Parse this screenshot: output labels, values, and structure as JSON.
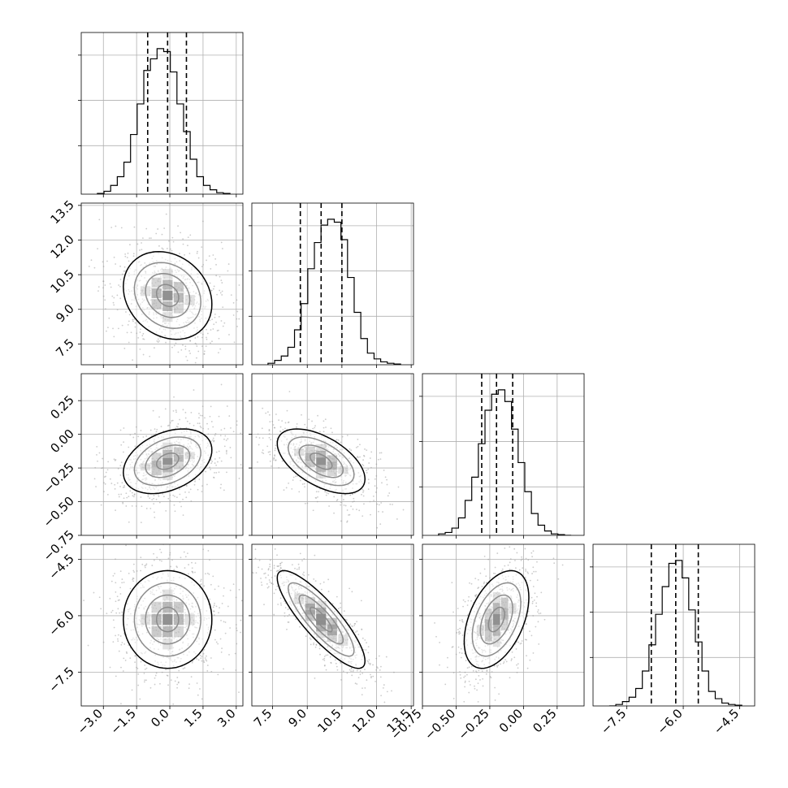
{
  "chart_data": {
    "type": "corner",
    "grid": true,
    "params": [
      {
        "ticks": [
          -3.0,
          -1.5,
          0.0,
          1.5,
          3.0
        ],
        "tick_labels": [
          "−3.0",
          "−1.5",
          "0.0",
          "1.5",
          "3.0"
        ],
        "range": [
          -4.0,
          3.3
        ],
        "quantiles": [
          -1.0,
          -0.1,
          0.75
        ]
      },
      {
        "ticks": [
          7.5,
          9.0,
          10.5,
          12.0,
          13.5
        ],
        "tick_labels": [
          "7.5",
          "9.0",
          "10.5",
          "12.0",
          "13.5"
        ],
        "range": [
          6.6,
          13.6
        ],
        "quantiles": [
          8.7,
          9.6,
          10.5
        ]
      },
      {
        "ticks": [
          -0.75,
          -0.5,
          -0.25,
          0.0,
          0.25
        ],
        "tick_labels": [
          "−0.75",
          "−0.50",
          "−0.25",
          "0.00",
          "0.25"
        ],
        "range": [
          -0.75,
          0.45
        ],
        "quantiles": [
          -0.31,
          -0.2,
          -0.08
        ]
      },
      {
        "ticks": [
          -7.5,
          -6.0,
          -4.5
        ],
        "tick_labels": [
          "−7.5",
          "−6.0",
          "−4.5"
        ],
        "range": [
          -8.4,
          -4.1
        ],
        "quantiles": [
          -6.85,
          -6.2,
          -5.6
        ]
      }
    ],
    "histograms": [
      [
        0.005,
        0.02,
        0.06,
        0.12,
        0.22,
        0.41,
        0.62,
        0.85,
        0.93,
        1.0,
        0.98,
        0.84,
        0.62,
        0.43,
        0.24,
        0.12,
        0.06,
        0.03,
        0.01,
        0.005
      ],
      [
        0.01,
        0.03,
        0.06,
        0.12,
        0.24,
        0.42,
        0.66,
        0.84,
        0.96,
        1.0,
        0.98,
        0.86,
        0.6,
        0.36,
        0.18,
        0.08,
        0.04,
        0.02,
        0.01,
        0.005
      ],
      [
        0.01,
        0.02,
        0.05,
        0.12,
        0.24,
        0.4,
        0.63,
        0.86,
        0.97,
        1.0,
        0.92,
        0.73,
        0.5,
        0.3,
        0.15,
        0.07,
        0.03,
        0.01,
        0.005,
        0.0
      ],
      [
        0.0,
        0.01,
        0.03,
        0.06,
        0.12,
        0.24,
        0.42,
        0.63,
        0.82,
        0.98,
        1.0,
        0.88,
        0.66,
        0.44,
        0.24,
        0.1,
        0.05,
        0.02,
        0.01,
        0.005
      ]
    ],
    "pairs": [
      {
        "row": 1,
        "col": 0,
        "center": [
          -0.1,
          9.6
        ],
        "sigma": [
          1.0,
          0.95
        ],
        "corr": -0.2
      },
      {
        "row": 2,
        "col": 0,
        "center": [
          -0.1,
          -0.2
        ],
        "sigma": [
          1.0,
          0.12
        ],
        "corr": 0.35
      },
      {
        "row": 2,
        "col": 1,
        "center": [
          9.6,
          -0.2
        ],
        "sigma": [
          0.95,
          0.12
        ],
        "corr": -0.55
      },
      {
        "row": 3,
        "col": 0,
        "center": [
          -0.1,
          -6.1
        ],
        "sigma": [
          1.0,
          0.65
        ],
        "corr": 0.0
      },
      {
        "row": 3,
        "col": 1,
        "center": [
          9.6,
          -6.1
        ],
        "sigma": [
          0.95,
          0.65
        ],
        "corr": -0.85
      },
      {
        "row": 3,
        "col": 2,
        "center": [
          -0.2,
          -6.1
        ],
        "sigma": [
          0.12,
          0.65
        ],
        "corr": 0.45
      }
    ],
    "contour_levels": [
      0.5,
      1.0,
      1.5,
      2.0
    ]
  }
}
